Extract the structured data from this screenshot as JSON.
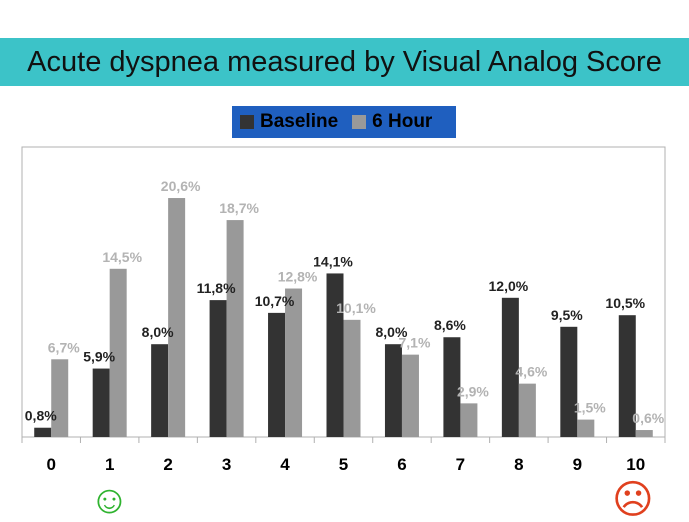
{
  "title": "Acute dyspnea measured by Visual Analog Score",
  "colors": {
    "title_bg": "#3cc3c8",
    "legend_bg": "#1f5fbf",
    "baseline": "#333333",
    "hour6": "#999999",
    "hour6_label": "#b3b3b3",
    "happy": "#2fb32f",
    "sad": "#e0401e"
  },
  "legend": {
    "baseline": "Baseline",
    "hour6": "6 Hour"
  },
  "icons": {
    "left": "happy-face-icon",
    "right": "sad-face-icon"
  },
  "chart_data": {
    "type": "bar",
    "categories": [
      "0",
      "1",
      "2",
      "3",
      "4",
      "5",
      "6",
      "7",
      "8",
      "9",
      "10"
    ],
    "series": [
      {
        "name": "Baseline",
        "values": [
          0.8,
          5.9,
          8.0,
          11.8,
          10.7,
          14.1,
          8.0,
          8.6,
          12.0,
          9.5,
          10.5
        ],
        "labels": [
          "0,8%",
          "5,9%",
          "8,0%",
          "11,8%",
          "10,7%",
          "14,1%",
          "8,0%",
          "8,6%",
          "12,0%",
          "9,5%",
          "10,5%"
        ]
      },
      {
        "name": "6 Hour",
        "values": [
          6.7,
          14.5,
          20.6,
          18.7,
          12.8,
          10.1,
          7.1,
          2.9,
          4.6,
          1.5,
          0.6
        ],
        "labels": [
          "6,7%",
          "14,5%",
          "20,6%",
          "18,7%",
          "12,8%",
          "10,1%",
          "7,1%",
          "2,9%",
          "4,6%",
          "1,5%",
          "0,6%"
        ]
      }
    ],
    "ylim": [
      0,
      25
    ],
    "grid": false,
    "legend_position": "top"
  }
}
